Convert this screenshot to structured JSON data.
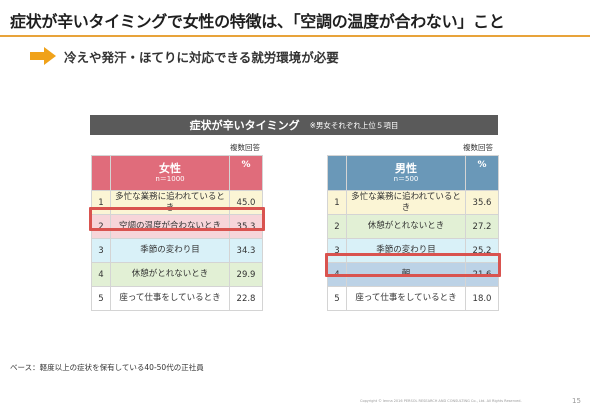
{
  "title": "症状が辛いタイミングで女性の特徴は、「空調の温度が合わない」こと",
  "subtitle": "冷えや発汗・ほてりに対応できる就労環境が必要",
  "banner": {
    "title": "症状が辛いタイミング",
    "note": "※男女それぞれ上位５項目"
  },
  "count_label": "複数回答",
  "female": {
    "name": "女性",
    "n": "n＝1000",
    "pct": "%",
    "header_color": "#e06c7b",
    "rank_bg": "#f7d5d9",
    "rows": [
      {
        "rank": "1",
        "text": "多忙な業務に追われているとき",
        "value": "45.0",
        "bg": "#fbf5d5"
      },
      {
        "rank": "2",
        "text": "空調の温度が合わないとき",
        "value": "35.3",
        "bg": "#f7d5d9"
      },
      {
        "rank": "3",
        "text": "季節の変わり目",
        "value": "34.3",
        "bg": "#d9f1f8"
      },
      {
        "rank": "4",
        "text": "休憩がとれないとき",
        "value": "29.9",
        "bg": "#e2f0d5"
      },
      {
        "rank": "5",
        "text": "座って仕事をしているとき",
        "value": "22.8",
        "bg": "#ffffff"
      }
    ]
  },
  "male": {
    "name": "男性",
    "n": "n＝500",
    "pct": "%",
    "header_color": "#6a98b8",
    "rank_bg": "#cfe0ee",
    "rows": [
      {
        "rank": "1",
        "text": "多忙な業務に追われているとき",
        "value": "35.6",
        "bg": "#fbf5d5"
      },
      {
        "rank": "2",
        "text": "休憩がとれないとき",
        "value": "27.2",
        "bg": "#e2f0d5"
      },
      {
        "rank": "3",
        "text": "季節の変わり目",
        "value": "25.2",
        "bg": "#d9f1f8"
      },
      {
        "rank": "4",
        "text": "朝",
        "value": "21.6",
        "bg": "#bcd2e6"
      },
      {
        "rank": "5",
        "text": "座って仕事をしているとき",
        "value": "18.0",
        "bg": "#ffffff"
      }
    ]
  },
  "highlight_color": "#d9534f",
  "footnote": "ベース：軽度以上の症状を保有している40-50代の正社員",
  "copyright": "Copyright © Ienna 2016 PERSOL RESEARCH AND CONSULTING Co., Ltd. All Rights Reserved.",
  "page_number": "15"
}
